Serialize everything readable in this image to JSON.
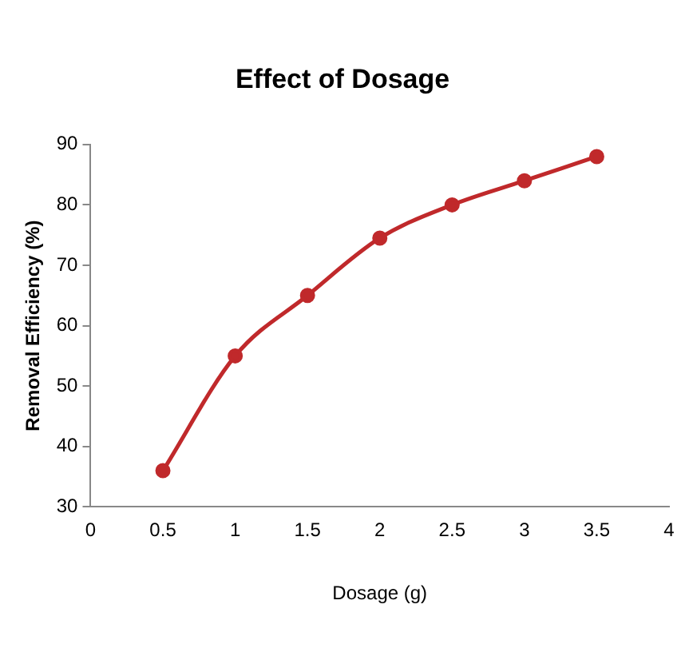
{
  "chart_data": {
    "type": "line",
    "title": "Effect of Dosage",
    "xlabel": "Dosage (g)",
    "ylabel": "Removal Efficiency (%)",
    "x": [
      0.5,
      1,
      1.5,
      2,
      2.5,
      3,
      3.5
    ],
    "series": [
      {
        "color": "#c0292b",
        "values": [
          36,
          55,
          65,
          74.5,
          80,
          84,
          88
        ]
      }
    ],
    "xlim": [
      0,
      4
    ],
    "xticks": [
      0,
      0.5,
      1,
      1.5,
      2,
      2.5,
      3,
      3.5,
      4
    ],
    "ylim": [
      30,
      90
    ],
    "yticks": [
      30,
      40,
      50,
      60,
      70,
      80,
      90
    ],
    "grid": false,
    "legend": false,
    "marker": "circle",
    "line_style": "solid"
  }
}
